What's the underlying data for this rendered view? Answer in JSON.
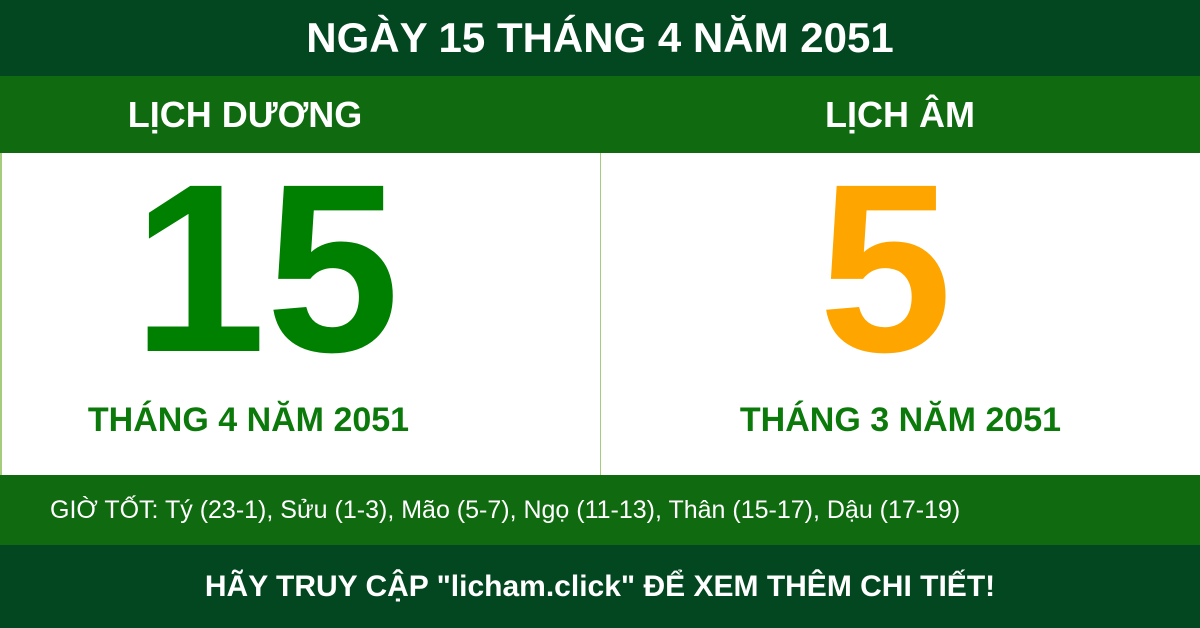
{
  "title": "NGÀY 15 THÁNG 4 NĂM 2051",
  "solar": {
    "label": "LỊCH DƯƠNG",
    "day": "15",
    "month_year": "THÁNG 4 NĂM 2051"
  },
  "lunar": {
    "label": "LỊCH ÂM",
    "day": "5",
    "month_year": "THÁNG 3 NĂM 2051"
  },
  "good_hours": "GIỜ TỐT: Tý (23-1), Sửu (1-3), Mão (5-7), Ngọ (11-13), Thân (15-17), Dậu (17-19)",
  "footer": "HÃY TRUY CẬP \"licham.click\" ĐỂ XEM THÊM CHI TIẾT!",
  "colors": {
    "dark_green": "#034721",
    "green": "#106b10",
    "solar_day": "#008000",
    "lunar_day": "#ffa500"
  }
}
